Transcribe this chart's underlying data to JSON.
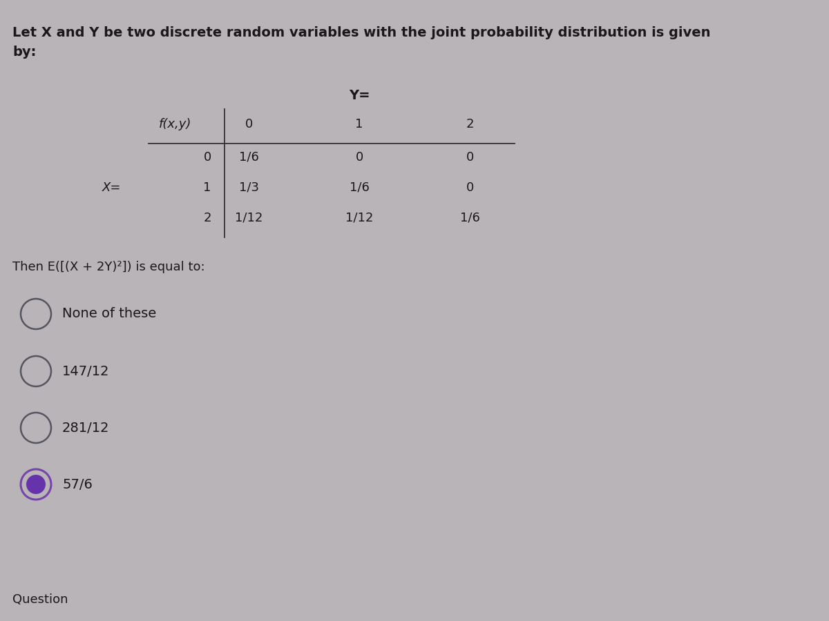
{
  "bg_color": "#b8b4b8",
  "text_color": "#1a1818",
  "title_text": "Let X and Y be two discrete random variables with the joint probability distribution is given\nby:",
  "y_label": "Y=",
  "fxy_label": "f(x,y)",
  "x_label": "X=",
  "col_headers": [
    "0",
    "1",
    "2"
  ],
  "row_headers": [
    "0",
    "1",
    "2"
  ],
  "table_data": [
    [
      "1/6",
      "0",
      "0"
    ],
    [
      "1/3",
      "1/6",
      "0"
    ],
    [
      "1/12",
      "1/12",
      "1/6"
    ]
  ],
  "question_text": "Then E([(X + 2Y)²]) is equal to:",
  "options": [
    {
      "label": "None of these",
      "selected": false
    },
    {
      "label": "147/12",
      "selected": false
    },
    {
      "label": "281/12",
      "selected": false
    },
    {
      "label": "57/6",
      "selected": true
    }
  ],
  "footer_text": "Question",
  "unselected_color": "#555560",
  "selected_outer_color": "#7744aa",
  "selected_inner_color": "#6633aa",
  "line_color": "#333333",
  "title_fontsize": 14,
  "table_fontsize": 13,
  "question_fontsize": 13,
  "option_fontsize": 14
}
